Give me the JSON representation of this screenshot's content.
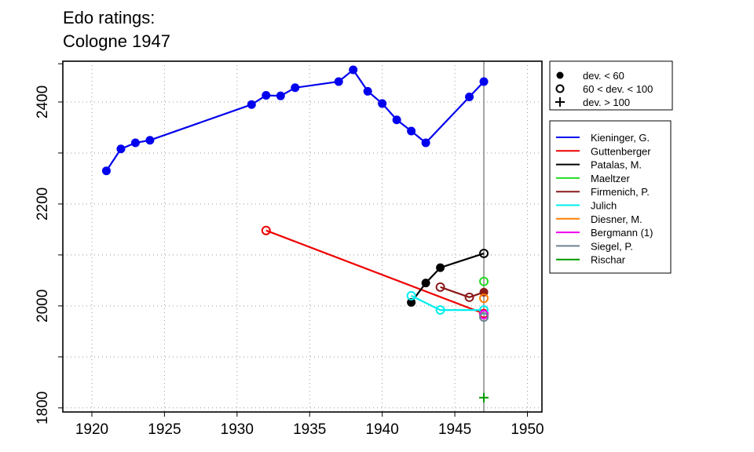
{
  "chart_data": {
    "type": "line",
    "title_line1": "Edo ratings:",
    "title_line2": "Cologne 1947",
    "xlabel": "",
    "ylabel": "",
    "xlim": [
      1918,
      1951
    ],
    "ylim": [
      1792,
      2480
    ],
    "x_ticks": [
      1920,
      1925,
      1930,
      1935,
      1940,
      1945,
      1950
    ],
    "y_ticks": [
      1800,
      2000,
      2200,
      2400
    ],
    "grid": "dotted",
    "vertical_marker_x": 1947,
    "marker_legend": [
      {
        "label": "dev. < 60",
        "symbol": "filled-circle"
      },
      {
        "label": "60 < dev. < 100",
        "symbol": "open-circle"
      },
      {
        "label": "dev. > 100",
        "symbol": "plus"
      }
    ],
    "series": [
      {
        "name": "Kieninger, G.",
        "color": "#0000ee",
        "points": [
          [
            1921,
            2265,
            "f"
          ],
          [
            1922,
            2308,
            "f"
          ],
          [
            1923,
            2320,
            "f"
          ],
          [
            1924,
            2325,
            "f"
          ],
          [
            1931,
            2395,
            "f"
          ],
          [
            1932,
            2413,
            "f"
          ],
          [
            1933,
            2412,
            "f"
          ],
          [
            1934,
            2428,
            "f"
          ],
          [
            1937,
            2440,
            "f"
          ],
          [
            1938,
            2463,
            "f"
          ],
          [
            1939,
            2421,
            "f"
          ],
          [
            1940,
            2397,
            "f"
          ],
          [
            1941,
            2365,
            "f"
          ],
          [
            1942,
            2343,
            "f"
          ],
          [
            1943,
            2320,
            "f"
          ],
          [
            1946,
            2410,
            "f"
          ],
          [
            1947,
            2440,
            "f"
          ]
        ]
      },
      {
        "name": "Guttenberger",
        "color": "#ee0000",
        "points": [
          [
            1932,
            2148,
            "o"
          ],
          [
            1947,
            1985,
            "o"
          ]
        ]
      },
      {
        "name": "Patalas, M.",
        "color": "#000000",
        "points": [
          [
            1942,
            2007,
            "f"
          ],
          [
            1943,
            2045,
            "f"
          ],
          [
            1944,
            2075,
            "f"
          ],
          [
            1947,
            2103,
            "o"
          ]
        ]
      },
      {
        "name": "Maeltzer",
        "color": "#22dd22",
        "points": [
          [
            1947,
            2048,
            "o"
          ]
        ]
      },
      {
        "name": "Firmenich, P.",
        "color": "#8b1a1a",
        "points": [
          [
            1944,
            2037,
            "o"
          ],
          [
            1946,
            2017,
            "o"
          ],
          [
            1947,
            2027,
            "f"
          ]
        ]
      },
      {
        "name": "Julich",
        "color": "#00eeee",
        "points": [
          [
            1942,
            2020,
            "o"
          ],
          [
            1944,
            1992,
            "o"
          ],
          [
            1947,
            1992,
            "o"
          ]
        ]
      },
      {
        "name": "Diesner, M.",
        "color": "#ff7f00",
        "points": [
          [
            1947,
            2015,
            "o"
          ]
        ]
      },
      {
        "name": "Bergmann (1)",
        "color": "#ee00ee",
        "points": [
          [
            1947,
            1983,
            "o"
          ]
        ]
      },
      {
        "name": "Siegel, P.",
        "color": "#708090",
        "points": [
          [
            1947,
            1978,
            "o"
          ]
        ]
      },
      {
        "name": "Rischar",
        "color": "#009900",
        "points": [
          [
            1947,
            1820,
            "p"
          ]
        ]
      }
    ]
  }
}
